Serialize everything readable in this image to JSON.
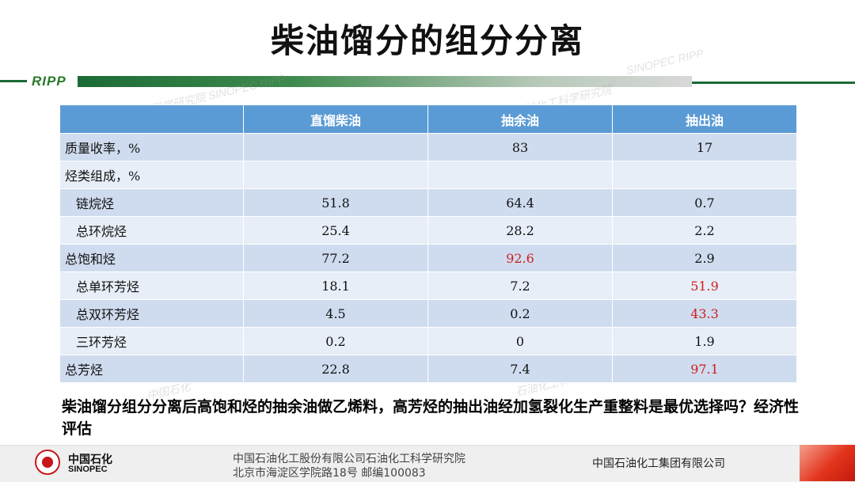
{
  "title": "柴油馏分的组分分离",
  "brand": {
    "ripp": "RIPP",
    "accent_green": "#1c6b36",
    "table_header_blue": "#5b9bd5",
    "highlight_red": "#d01c1c"
  },
  "watermarks": [
    "工科学研究院 SINOPEC RIPP",
    "SINOPEC RIPP",
    "中国石油化工科学研究院",
    "中国石化",
    "石油化工科学"
  ],
  "table": {
    "headers": [
      "",
      "直馏柴油",
      "抽余油",
      "抽出油"
    ],
    "rows": [
      {
        "label": "质量收率，%",
        "indent": false,
        "values": [
          "",
          "83",
          "17"
        ],
        "highlight": [
          false,
          false,
          false
        ]
      },
      {
        "label": "烃类组成，%",
        "indent": false,
        "values": [
          "",
          "",
          ""
        ],
        "highlight": [
          false,
          false,
          false
        ]
      },
      {
        "label": "链烷烃",
        "indent": true,
        "values": [
          "51.8",
          "64.4",
          "0.7"
        ],
        "highlight": [
          false,
          false,
          false
        ]
      },
      {
        "label": "总环烷烃",
        "indent": true,
        "values": [
          "25.4",
          "28.2",
          "2.2"
        ],
        "highlight": [
          false,
          false,
          false
        ]
      },
      {
        "label": "总饱和烃",
        "indent": false,
        "values": [
          "77.2",
          "92.6",
          "2.9"
        ],
        "highlight": [
          false,
          true,
          false
        ]
      },
      {
        "label": "总单环芳烃",
        "indent": true,
        "values": [
          "18.1",
          "7.2",
          "51.9"
        ],
        "highlight": [
          false,
          false,
          true
        ]
      },
      {
        "label": "总双环芳烃",
        "indent": true,
        "values": [
          "4.5",
          "0.2",
          "43.3"
        ],
        "highlight": [
          false,
          false,
          true
        ]
      },
      {
        "label": "三环芳烃",
        "indent": true,
        "values": [
          "0.2",
          "0",
          "1.9"
        ],
        "highlight": [
          false,
          false,
          false
        ]
      },
      {
        "label": "总芳烃",
        "indent": false,
        "values": [
          "22.8",
          "7.4",
          "97.1"
        ],
        "highlight": [
          false,
          false,
          true
        ]
      }
    ]
  },
  "note": "柴油馏分组分分离后高饱和烃的抽余油做乙烯料，高芳烃的抽出油经加氢裂化生产重整料是最优选择吗？经济性评估",
  "footer": {
    "logo_cn": "中国石化",
    "logo_en": "SINOPEC",
    "org": "中国石油化工股份有限公司石油化工科学研究院",
    "address": "北京市海淀区学院路18号   邮编100083",
    "group": "中国石油化工集团有限公司"
  }
}
